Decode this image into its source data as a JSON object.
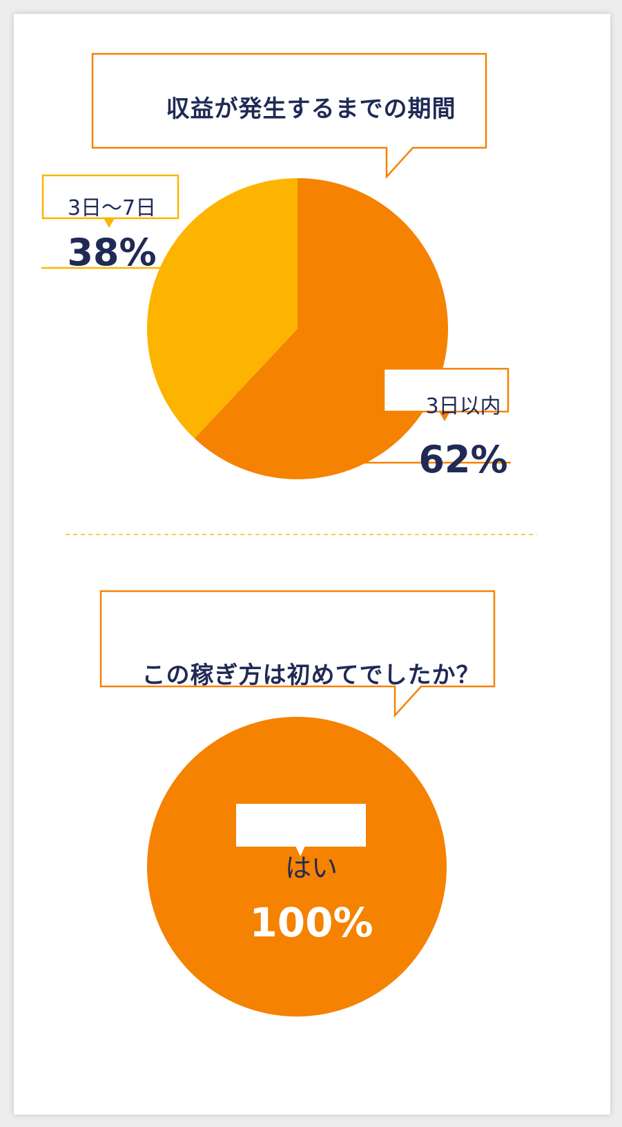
{
  "colors": {
    "orange": "#f58200",
    "yellow": "#fcb400",
    "navy": "#1f2a55",
    "divider": "#f2c200"
  },
  "chart_data": [
    {
      "type": "pie",
      "title": "収益が発生するまでの期間",
      "slices": [
        {
          "label": "3日以内",
          "value": 62,
          "value_label": "62%",
          "color": "#f58200"
        },
        {
          "label": "3日〜7日",
          "value": 38,
          "value_label": "38%",
          "color": "#fcb400"
        }
      ]
    },
    {
      "type": "pie",
      "title": "この稼ぎ方は初めてでしたか？",
      "slices": [
        {
          "label": "はい",
          "value": 100,
          "value_label": "100%",
          "color": "#f58200"
        }
      ]
    }
  ]
}
